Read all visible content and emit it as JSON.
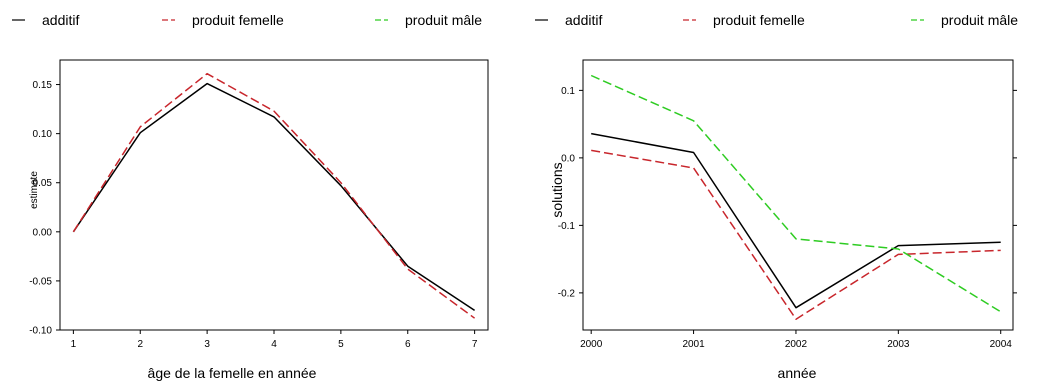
{
  "legend": {
    "items": [
      {
        "label": "additif",
        "color": "#000000",
        "dash": "solid"
      },
      {
        "label": "produit femelle",
        "color": "#c8262c",
        "dash": "dashed"
      },
      {
        "label": "produit mâle",
        "color": "#2ecc22",
        "dash": "dashed"
      }
    ]
  },
  "chart_data": [
    {
      "type": "line",
      "xlabel": "âge de la femelle en année",
      "ylabel": "estimate",
      "x": [
        1,
        2,
        3,
        4,
        5,
        6,
        7
      ],
      "xlim": [
        0.8,
        7.2
      ],
      "ylim": [
        -0.1,
        0.175
      ],
      "xticks": [
        1,
        2,
        3,
        4,
        5,
        6,
        7
      ],
      "yticks": [
        -0.1,
        -0.05,
        0.0,
        0.05,
        0.1,
        0.15
      ],
      "ytick_labels": [
        "-0.10",
        "-0.05",
        "0.00",
        "0.05",
        "0.10",
        "0.15"
      ],
      "yticks_side": "left",
      "series": [
        {
          "name": "additif",
          "values": [
            0.0,
            0.101,
            0.151,
            0.117,
            0.047,
            -0.035,
            -0.08
          ]
        },
        {
          "name": "produit femelle",
          "values": [
            0.0,
            0.107,
            0.161,
            0.123,
            0.05,
            -0.038,
            -0.088
          ]
        }
      ]
    },
    {
      "type": "line",
      "xlabel": "année",
      "ylabel": "solutions",
      "x": [
        2000,
        2001,
        2002,
        2003,
        2004
      ],
      "xlim": [
        1999.92,
        2004.12
      ],
      "ylim": [
        -0.255,
        0.145
      ],
      "xticks": [
        2000,
        2001,
        2002,
        2003,
        2004
      ],
      "yticks": [
        -0.2,
        -0.1,
        0.0,
        0.1
      ],
      "ytick_labels": [
        "-0.2",
        "-0.1",
        "0.0",
        "0.1"
      ],
      "yticks_side": "both",
      "series": [
        {
          "name": "additif",
          "values": [
            0.036,
            0.008,
            -0.222,
            -0.13,
            -0.125
          ]
        },
        {
          "name": "produit femelle",
          "values": [
            0.011,
            -0.015,
            -0.239,
            -0.143,
            -0.137
          ]
        },
        {
          "name": "produit mâle",
          "values": [
            0.122,
            0.055,
            -0.12,
            -0.135,
            -0.228
          ]
        }
      ]
    }
  ]
}
